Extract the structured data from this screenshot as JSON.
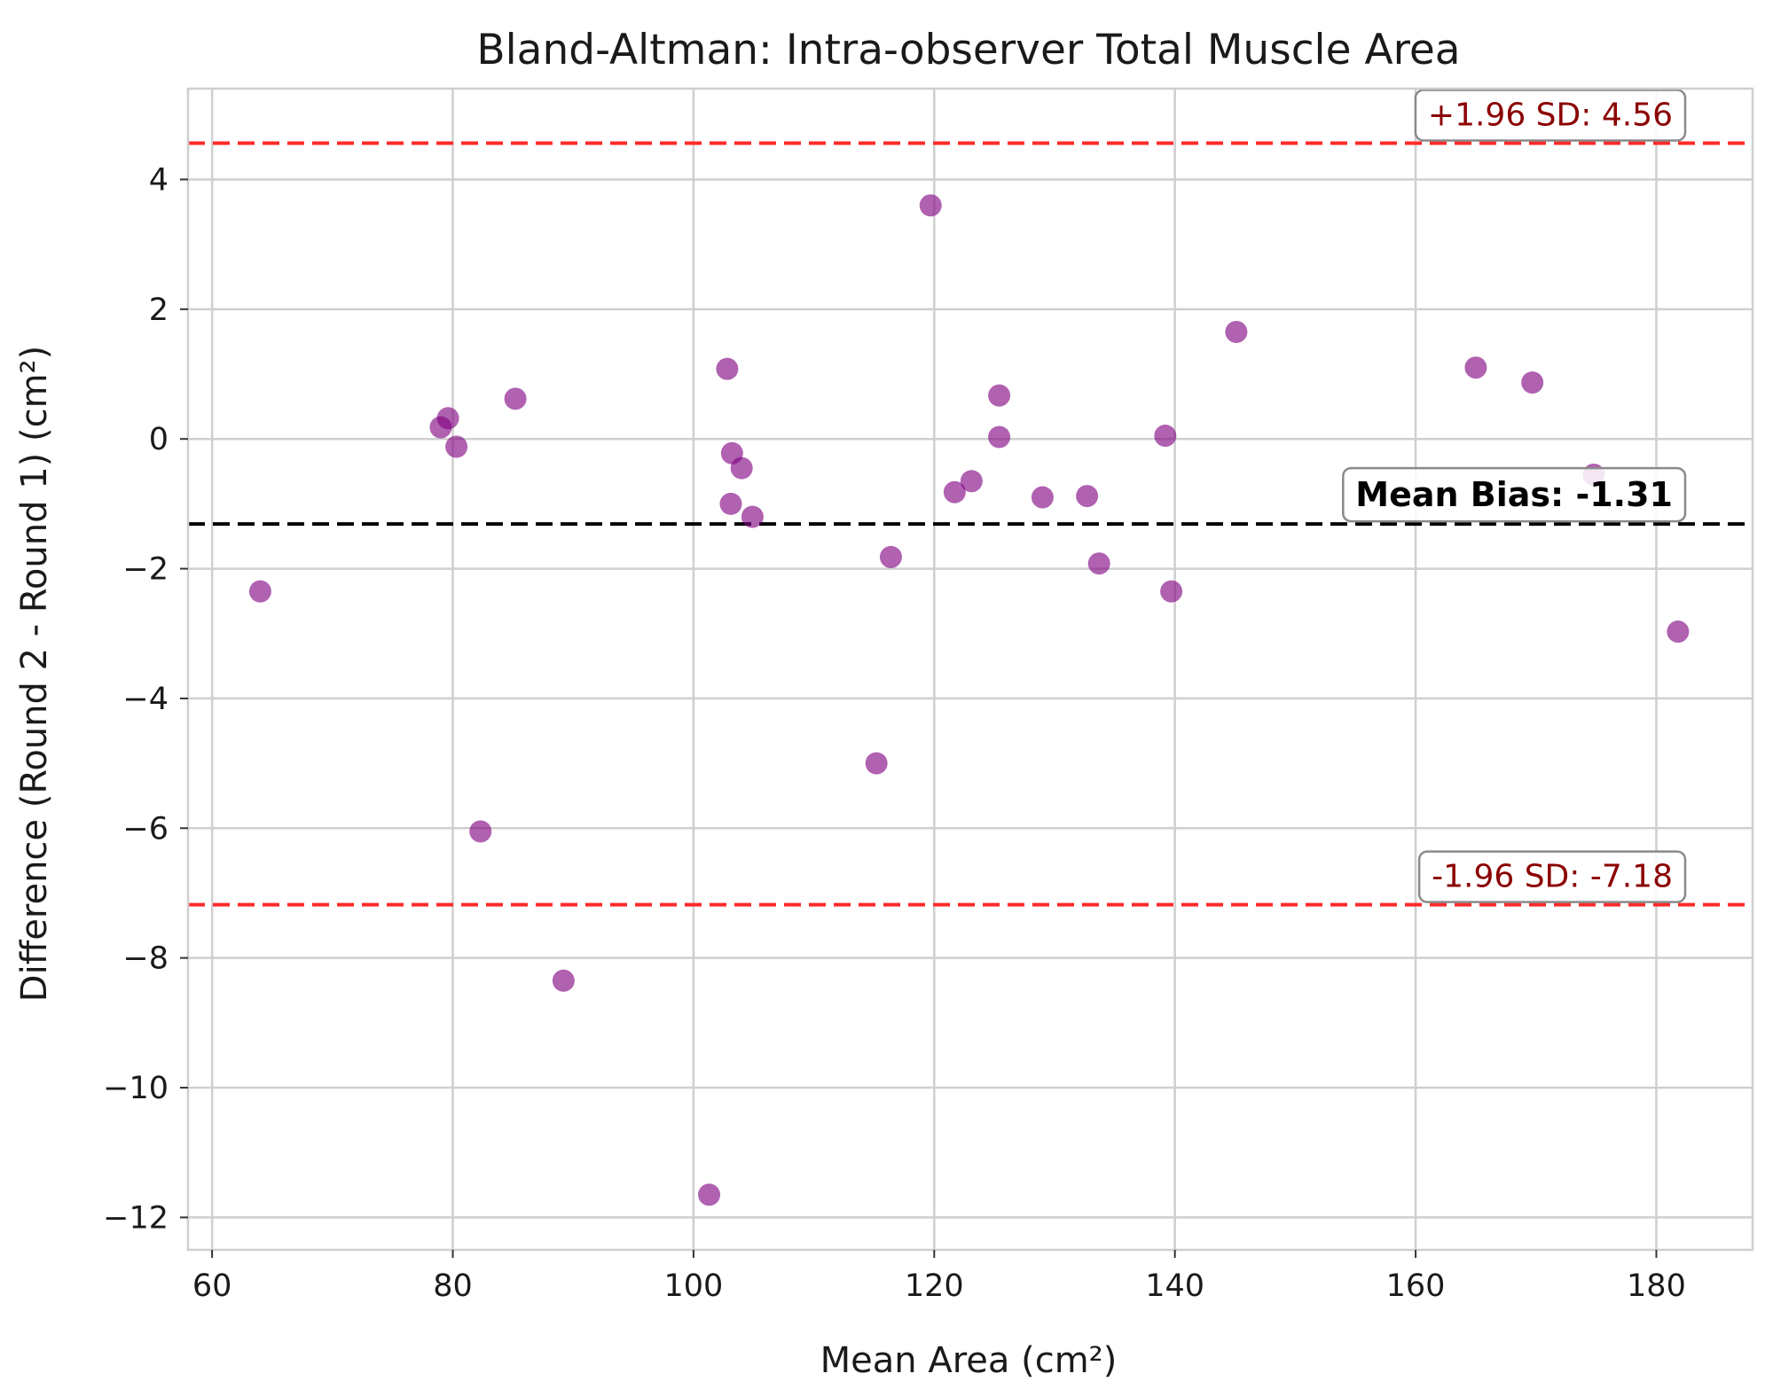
{
  "chart_data": {
    "type": "scatter",
    "title": "Bland-Altman: Intra-observer Total Muscle Area",
    "xlabel": "Mean Area (cm²)",
    "ylabel": "Difference (Round 2 - Round 1) (cm²)",
    "xlim": [
      58,
      188
    ],
    "ylim": [
      -12.5,
      5.4
    ],
    "xticks": [
      60,
      80,
      100,
      120,
      140,
      160,
      180
    ],
    "yticks": [
      4,
      2,
      0,
      -2,
      -4,
      -6,
      -8,
      -10,
      -12
    ],
    "grid": true,
    "colors": {
      "points": "#800080",
      "limits": "#ff2a2a",
      "mean": "#000000",
      "limit_text": "#8b0000"
    },
    "reference_lines": {
      "upper": {
        "value": 4.56,
        "label": "+1.96 SD: 4.56"
      },
      "mean": {
        "value": -1.31,
        "label": "Mean Bias: -1.31"
      },
      "lower": {
        "value": -7.18,
        "label": "-1.96 SD: -7.18"
      }
    },
    "points": [
      {
        "x": 64.0,
        "y": -2.35
      },
      {
        "x": 79.0,
        "y": 0.18
      },
      {
        "x": 79.6,
        "y": 0.32
      },
      {
        "x": 80.3,
        "y": -0.12
      },
      {
        "x": 82.3,
        "y": -6.05
      },
      {
        "x": 85.2,
        "y": 0.62
      },
      {
        "x": 89.2,
        "y": -8.35
      },
      {
        "x": 101.3,
        "y": -11.65
      },
      {
        "x": 102.8,
        "y": 1.08
      },
      {
        "x": 103.2,
        "y": -0.22
      },
      {
        "x": 103.1,
        "y": -1.0
      },
      {
        "x": 104.0,
        "y": -0.45
      },
      {
        "x": 104.9,
        "y": -1.2
      },
      {
        "x": 115.2,
        "y": -5.0
      },
      {
        "x": 116.4,
        "y": -1.82
      },
      {
        "x": 119.7,
        "y": 3.6
      },
      {
        "x": 121.7,
        "y": -0.82
      },
      {
        "x": 123.1,
        "y": -0.65
      },
      {
        "x": 125.4,
        "y": 0.67
      },
      {
        "x": 125.4,
        "y": 0.03
      },
      {
        "x": 129.0,
        "y": -0.9
      },
      {
        "x": 132.7,
        "y": -0.88
      },
      {
        "x": 133.7,
        "y": -1.92
      },
      {
        "x": 139.2,
        "y": 0.05
      },
      {
        "x": 139.7,
        "y": -2.35
      },
      {
        "x": 145.1,
        "y": 1.65
      },
      {
        "x": 165.0,
        "y": 1.1
      },
      {
        "x": 169.7,
        "y": 0.87
      },
      {
        "x": 174.8,
        "y": -0.55
      },
      {
        "x": 181.8,
        "y": -2.97
      }
    ]
  }
}
